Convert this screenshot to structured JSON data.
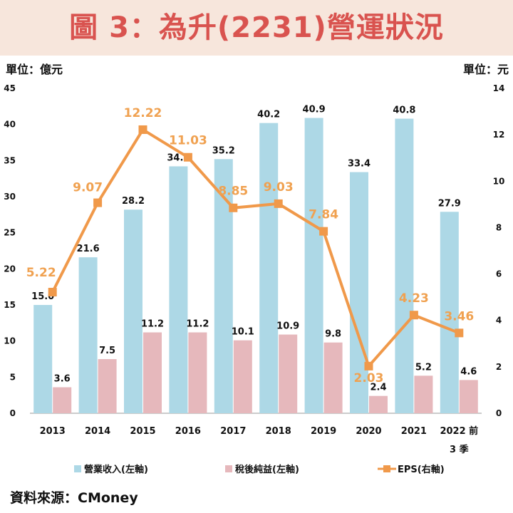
{
  "title": "圖 3：為升(2231)營運狀況",
  "unit_left": "單位：億元",
  "unit_right": "單位：元",
  "source": "資料來源：CMoney",
  "colors": {
    "revenue": "#add8e6",
    "net_income": "#e6b8bc",
    "eps": "#f0994a",
    "eps_label": "#f0a150",
    "title": "#d9534f",
    "title_bg": "#f7e6dc"
  },
  "chart_data": {
    "type": "bar",
    "categories": [
      "2013",
      "2014",
      "2015",
      "2016",
      "2017",
      "2018",
      "2019",
      "2020",
      "2021",
      "2022 前\n3 季"
    ],
    "category_lines": [
      [
        "2013"
      ],
      [
        "2014"
      ],
      [
        "2015"
      ],
      [
        "2016"
      ],
      [
        "2017"
      ],
      [
        "2018"
      ],
      [
        "2019"
      ],
      [
        "2020"
      ],
      [
        "2021"
      ],
      [
        "2022 前",
        "3 季"
      ]
    ],
    "series": [
      {
        "name": "營業收入(左軸)",
        "type": "bar",
        "axis": "left",
        "values": [
          15.0,
          21.6,
          28.2,
          34.2,
          35.2,
          40.2,
          40.9,
          33.4,
          40.8,
          27.9
        ],
        "labels": [
          "15.0",
          "21.6",
          "28.2",
          "34.2",
          "35.2",
          "40.2",
          "40.9",
          "33.4",
          "40.8",
          "27.9"
        ]
      },
      {
        "name": "稅後純益(左軸)",
        "type": "bar",
        "axis": "left",
        "values": [
          3.6,
          7.5,
          11.2,
          11.2,
          10.1,
          10.9,
          9.8,
          2.4,
          5.2,
          4.6
        ],
        "labels": [
          "3.6",
          "7.5",
          "11.2",
          "11.2",
          "10.1",
          "10.9",
          "9.8",
          "2.4",
          "5.2",
          "4.6"
        ]
      },
      {
        "name": "EPS(右軸)",
        "type": "line",
        "axis": "right",
        "values": [
          5.22,
          9.07,
          12.22,
          11.03,
          8.85,
          9.03,
          7.84,
          2.03,
          4.23,
          3.46
        ],
        "labels": [
          "5.22",
          "9.07",
          "12.22",
          "11.03",
          "8.85",
          "9.03",
          "7.84",
          "2.03",
          "4.23",
          "3.46"
        ]
      }
    ],
    "y_left": {
      "min": 0,
      "max": 45,
      "ticks": [
        "0",
        "5",
        "10",
        "15",
        "20",
        "25",
        "30",
        "35",
        "40",
        "45"
      ]
    },
    "y_right": {
      "min": 0,
      "max": 14,
      "ticks": [
        "0",
        "2",
        "4",
        "6",
        "8",
        "10",
        "12",
        "14"
      ]
    },
    "grid": false,
    "legend_position": "bottom"
  }
}
